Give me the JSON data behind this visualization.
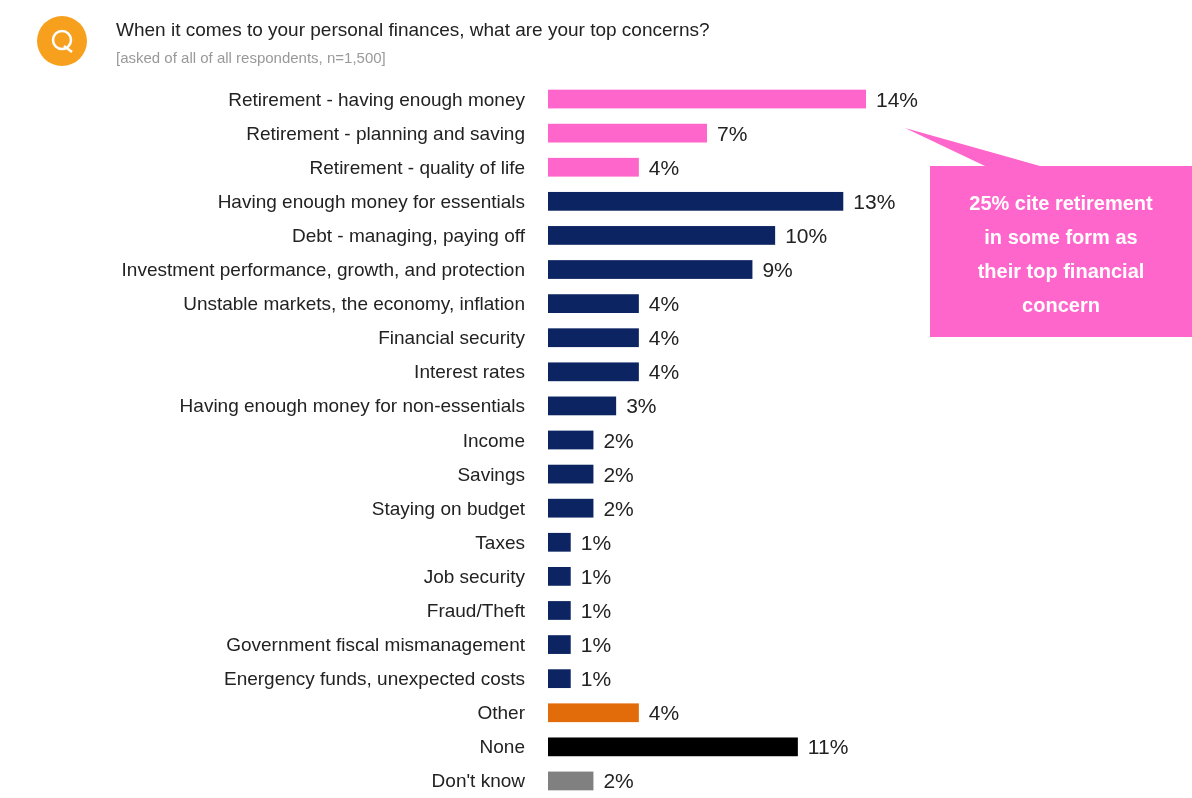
{
  "chart_data": {
    "type": "bar",
    "orientation": "horizontal",
    "title": "When it comes to your personal finances, what are your top concerns?",
    "subtitle": "[asked of all of all respondents, n=1,500]",
    "categories": [
      "Retirement - having enough money",
      "Retirement - planning and saving",
      "Retirement - quality of life",
      "Having enough money for essentials",
      "Debt - managing, paying off",
      "Investment performance, growth, and protection",
      "Unstable markets, the economy, inflation",
      "Financial security",
      "Interest rates",
      "Having enough money for non-essentials",
      "Income",
      "Savings",
      "Staying on budget",
      "Taxes",
      "Job security",
      "Fraud/Theft",
      "Government fiscal mismanagement",
      "Energency funds, unexpected costs",
      "Other",
      "None",
      "Don't know"
    ],
    "values": [
      14,
      7,
      4,
      13,
      10,
      9,
      4,
      4,
      4,
      3,
      2,
      2,
      2,
      1,
      1,
      1,
      1,
      1,
      4,
      11,
      2
    ],
    "value_labels": [
      "14%",
      "7%",
      "4%",
      "13%",
      "10%",
      "9%",
      "4%",
      "4%",
      "4%",
      "3%",
      "2%",
      "2%",
      "2%",
      "1%",
      "1%",
      "1%",
      "1%",
      "1%",
      "4%",
      "11%",
      "2%"
    ],
    "colors": [
      "#ff66cc",
      "#ff66cc",
      "#ff66cc",
      "#0c2461",
      "#0c2461",
      "#0c2461",
      "#0c2461",
      "#0c2461",
      "#0c2461",
      "#0c2461",
      "#0c2461",
      "#0c2461",
      "#0c2461",
      "#0c2461",
      "#0c2461",
      "#0c2461",
      "#0c2461",
      "#0c2461",
      "#e36c0a",
      "#000000",
      "#808080"
    ],
    "annotations": [
      "25% cite retirement in some form as their top financial concern"
    ]
  }
}
